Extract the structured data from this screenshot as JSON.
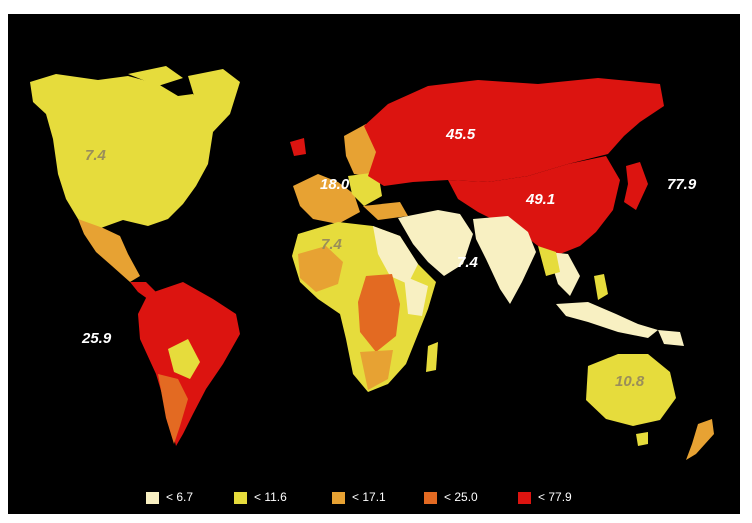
{
  "colors": {
    "background": "#000000",
    "bin_lt_6_7": "#f8f0c2",
    "bin_lt_11_6": "#e6dc3c",
    "bin_lt_17_1": "#e7a233",
    "bin_lt_25_0": "#e36a22",
    "bin_lt_77_9": "#dc1410"
  },
  "region_values": {
    "north_america": "7.4",
    "south_america": "25.9",
    "europe": "18.0",
    "north_asia": "45.5",
    "east_asia": "49.1",
    "west_pacific": "77.9",
    "africa": "7.4",
    "south_asia": "7.4",
    "australia": "10.8"
  },
  "legend": [
    {
      "label": "< 6.7",
      "color": "#f8f0c2"
    },
    {
      "label": "< 11.6",
      "color": "#e6dc3c"
    },
    {
      "label": "< 17.1",
      "color": "#e7a233"
    },
    {
      "label": "< 25.0",
      "color": "#e36a22"
    },
    {
      "label": "< 77.9",
      "color": "#dc1410"
    }
  ]
}
